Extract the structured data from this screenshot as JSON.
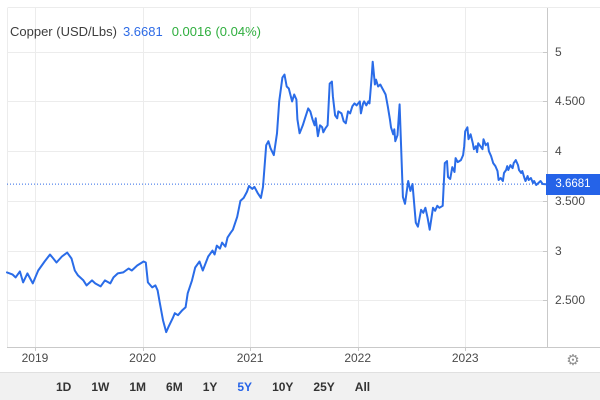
{
  "header": {
    "title": "Copper (USD/Lbs)",
    "price": "3.6681",
    "change": "0.0016",
    "change_pct": "(0.04%)"
  },
  "price_badge": "3.6681",
  "gear_icon": "⚙",
  "y_axis": {
    "labels": [
      "5",
      "4.500",
      "4",
      "3.500",
      "3",
      "2.500"
    ],
    "values": [
      5,
      4.5,
      4,
      3.5,
      3,
      2.5
    ]
  },
  "x_axis": {
    "labels": [
      "2019",
      "2020",
      "2021",
      "2022",
      "2023"
    ],
    "values": [
      2019,
      2020,
      2021,
      2022,
      2023
    ]
  },
  "toolbar": {
    "buttons": [
      "1D",
      "1W",
      "1M",
      "6M",
      "1Y",
      "5Y",
      "10Y",
      "25Y",
      "All"
    ],
    "active": "5Y"
  },
  "colors": {
    "line": "#2a6ce8",
    "dotted_line": "#2f6ae6",
    "badge_bg": "#2563e8",
    "price_text": "#2e6be6",
    "change_text": "#2fae3e",
    "title_text": "#3d3d3d",
    "grid": "#ececec",
    "axis_border": "#c9c9c9",
    "tick": "#bbbbbb",
    "axis_label": "#4a4a4a",
    "toolbar_bg": "#f1f1f1",
    "button_text": "#333333",
    "active_button_text": "#2563e8",
    "gear": "#8f8f8f"
  },
  "chart_data": {
    "type": "line",
    "title": "Copper (USD/Lbs)",
    "xlabel": "",
    "ylabel": "USD/Lbs",
    "current_value": 3.6681,
    "change": 0.0016,
    "change_percent": 0.04,
    "period_selected": "5Y",
    "x_range": [
      2018.74,
      2023.76
    ],
    "y_render_range": [
      2.03,
      5.44
    ],
    "y_ticks": [
      5,
      4.5,
      4,
      3.5,
      3,
      2.5
    ],
    "x_ticks": [
      2019,
      2020,
      2021,
      2022,
      2023
    ],
    "grid": true,
    "legend": false,
    "points": [
      [
        2018.74,
        2.78
      ],
      [
        2018.79,
        2.76
      ],
      [
        2018.82,
        2.73
      ],
      [
        2018.86,
        2.79
      ],
      [
        2018.89,
        2.68
      ],
      [
        2018.93,
        2.77
      ],
      [
        2018.98,
        2.67
      ],
      [
        2019.03,
        2.8
      ],
      [
        2019.09,
        2.89
      ],
      [
        2019.14,
        2.96
      ],
      [
        2019.17,
        2.92
      ],
      [
        2019.2,
        2.88
      ],
      [
        2019.25,
        2.94
      ],
      [
        2019.3,
        2.98
      ],
      [
        2019.34,
        2.92
      ],
      [
        2019.37,
        2.8
      ],
      [
        2019.4,
        2.75
      ],
      [
        2019.45,
        2.7
      ],
      [
        2019.48,
        2.65
      ],
      [
        2019.53,
        2.7
      ],
      [
        2019.56,
        2.67
      ],
      [
        2019.61,
        2.64
      ],
      [
        2019.65,
        2.7
      ],
      [
        2019.7,
        2.67
      ],
      [
        2019.73,
        2.73
      ],
      [
        2019.77,
        2.77
      ],
      [
        2019.82,
        2.78
      ],
      [
        2019.87,
        2.82
      ],
      [
        2019.9,
        2.8
      ],
      [
        2019.95,
        2.85
      ],
      [
        2019.98,
        2.87
      ],
      [
        2020.01,
        2.89
      ],
      [
        2020.03,
        2.88
      ],
      [
        2020.05,
        2.68
      ],
      [
        2020.09,
        2.63
      ],
      [
        2020.12,
        2.65
      ],
      [
        2020.14,
        2.6
      ],
      [
        2020.16,
        2.48
      ],
      [
        2020.19,
        2.3
      ],
      [
        2020.22,
        2.18
      ],
      [
        2020.24,
        2.23
      ],
      [
        2020.28,
        2.32
      ],
      [
        2020.3,
        2.37
      ],
      [
        2020.33,
        2.35
      ],
      [
        2020.37,
        2.4
      ],
      [
        2020.4,
        2.43
      ],
      [
        2020.42,
        2.57
      ],
      [
        2020.46,
        2.7
      ],
      [
        2020.49,
        2.83
      ],
      [
        2020.53,
        2.89
      ],
      [
        2020.56,
        2.8
      ],
      [
        2020.61,
        2.94
      ],
      [
        2020.65,
        3.0
      ],
      [
        2020.67,
        2.96
      ],
      [
        2020.69,
        3.05
      ],
      [
        2020.72,
        3.02
      ],
      [
        2020.74,
        3.08
      ],
      [
        2020.77,
        3.04
      ],
      [
        2020.79,
        3.13
      ],
      [
        2020.82,
        3.18
      ],
      [
        2020.84,
        3.21
      ],
      [
        2020.88,
        3.34
      ],
      [
        2020.91,
        3.5
      ],
      [
        2020.94,
        3.53
      ],
      [
        2020.97,
        3.59
      ],
      [
        2020.99,
        3.65
      ],
      [
        2021.02,
        3.62
      ],
      [
        2021.04,
        3.64
      ],
      [
        2021.07,
        3.58
      ],
      [
        2021.1,
        3.53
      ],
      [
        2021.12,
        3.64
      ],
      [
        2021.15,
        4.06
      ],
      [
        2021.17,
        4.1
      ],
      [
        2021.19,
        4.03
      ],
      [
        2021.22,
        3.96
      ],
      [
        2021.25,
        4.18
      ],
      [
        2021.27,
        4.5
      ],
      [
        2021.3,
        4.74
      ],
      [
        2021.32,
        4.77
      ],
      [
        2021.34,
        4.65
      ],
      [
        2021.36,
        4.63
      ],
      [
        2021.39,
        4.5
      ],
      [
        2021.41,
        4.57
      ],
      [
        2021.43,
        4.52
      ],
      [
        2021.44,
        4.32
      ],
      [
        2021.46,
        4.18
      ],
      [
        2021.49,
        4.26
      ],
      [
        2021.51,
        4.33
      ],
      [
        2021.54,
        4.43
      ],
      [
        2021.56,
        4.4
      ],
      [
        2021.58,
        4.32
      ],
      [
        2021.6,
        4.26
      ],
      [
        2021.61,
        4.33
      ],
      [
        2021.63,
        4.15
      ],
      [
        2021.65,
        4.26
      ],
      [
        2021.67,
        4.24
      ],
      [
        2021.68,
        4.19
      ],
      [
        2021.7,
        4.23
      ],
      [
        2021.72,
        4.26
      ],
      [
        2021.74,
        4.68
      ],
      [
        2021.76,
        4.7
      ],
      [
        2021.77,
        4.55
      ],
      [
        2021.79,
        4.36
      ],
      [
        2021.81,
        4.33
      ],
      [
        2021.82,
        4.4
      ],
      [
        2021.85,
        4.38
      ],
      [
        2021.87,
        4.3
      ],
      [
        2021.89,
        4.28
      ],
      [
        2021.91,
        4.4
      ],
      [
        2021.93,
        4.38
      ],
      [
        2021.95,
        4.45
      ],
      [
        2021.97,
        4.48
      ],
      [
        2021.99,
        4.46
      ],
      [
        2022.02,
        4.5
      ],
      [
        2022.03,
        4.38
      ],
      [
        2022.05,
        4.48
      ],
      [
        2022.06,
        4.5
      ],
      [
        2022.08,
        4.46
      ],
      [
        2022.1,
        4.5
      ],
      [
        2022.11,
        4.48
      ],
      [
        2022.13,
        4.75
      ],
      [
        2022.14,
        4.9
      ],
      [
        2022.16,
        4.67
      ],
      [
        2022.17,
        4.72
      ],
      [
        2022.19,
        4.65
      ],
      [
        2022.21,
        4.67
      ],
      [
        2022.23,
        4.63
      ],
      [
        2022.24,
        4.61
      ],
      [
        2022.26,
        4.57
      ],
      [
        2022.28,
        4.45
      ],
      [
        2022.3,
        4.32
      ],
      [
        2022.31,
        4.24
      ],
      [
        2022.33,
        4.17
      ],
      [
        2022.34,
        4.22
      ],
      [
        2022.35,
        4.1
      ],
      [
        2022.37,
        4.16
      ],
      [
        2022.39,
        4.47
      ],
      [
        2022.42,
        3.54
      ],
      [
        2022.44,
        3.47
      ],
      [
        2022.47,
        3.7
      ],
      [
        2022.49,
        3.6
      ],
      [
        2022.51,
        3.67
      ],
      [
        2022.54,
        3.28
      ],
      [
        2022.56,
        3.24
      ],
      [
        2022.59,
        3.41
      ],
      [
        2022.61,
        3.38
      ],
      [
        2022.63,
        3.43
      ],
      [
        2022.65,
        3.33
      ],
      [
        2022.67,
        3.21
      ],
      [
        2022.7,
        3.43
      ],
      [
        2022.72,
        3.4
      ],
      [
        2022.74,
        3.45
      ],
      [
        2022.76,
        3.43
      ],
      [
        2022.79,
        3.45
      ],
      [
        2022.81,
        3.88
      ],
      [
        2022.83,
        3.9
      ],
      [
        2022.84,
        3.74
      ],
      [
        2022.86,
        3.72
      ],
      [
        2022.88,
        3.84
      ],
      [
        2022.9,
        3.79
      ],
      [
        2022.91,
        3.93
      ],
      [
        2022.93,
        3.89
      ],
      [
        2022.96,
        3.91
      ],
      [
        2022.98,
        3.96
      ],
      [
        2022.99,
        4.05
      ],
      [
        2023.0,
        4.2
      ],
      [
        2023.02,
        4.24
      ],
      [
        2023.03,
        4.12
      ],
      [
        2023.05,
        4.17
      ],
      [
        2023.07,
        4.08
      ],
      [
        2023.08,
        4.02
      ],
      [
        2023.1,
        4.05
      ],
      [
        2023.11,
        3.99
      ],
      [
        2023.12,
        4.08
      ],
      [
        2023.16,
        4.02
      ],
      [
        2023.17,
        4.12
      ],
      [
        2023.19,
        4.06
      ],
      [
        2023.21,
        4.08
      ],
      [
        2023.22,
        4.0
      ],
      [
        2023.24,
        3.95
      ],
      [
        2023.26,
        3.88
      ],
      [
        2023.28,
        3.85
      ],
      [
        2023.3,
        3.8
      ],
      [
        2023.31,
        3.71
      ],
      [
        2023.33,
        3.73
      ],
      [
        2023.35,
        3.7
      ],
      [
        2023.36,
        3.78
      ],
      [
        2023.38,
        3.81
      ],
      [
        2023.39,
        3.85
      ],
      [
        2023.4,
        3.81
      ],
      [
        2023.42,
        3.86
      ],
      [
        2023.44,
        3.83
      ],
      [
        2023.45,
        3.88
      ],
      [
        2023.47,
        3.91
      ],
      [
        2023.49,
        3.86
      ],
      [
        2023.5,
        3.81
      ],
      [
        2023.52,
        3.78
      ],
      [
        2023.53,
        3.8
      ],
      [
        2023.55,
        3.73
      ],
      [
        2023.56,
        3.7
      ],
      [
        2023.58,
        3.75
      ],
      [
        2023.59,
        3.71
      ],
      [
        2023.61,
        3.73
      ],
      [
        2023.63,
        3.68
      ],
      [
        2023.64,
        3.7
      ],
      [
        2023.66,
        3.66
      ],
      [
        2023.68,
        3.68
      ],
      [
        2023.7,
        3.7
      ],
      [
        2023.72,
        3.67
      ],
      [
        2023.75,
        3.6681
      ]
    ]
  }
}
